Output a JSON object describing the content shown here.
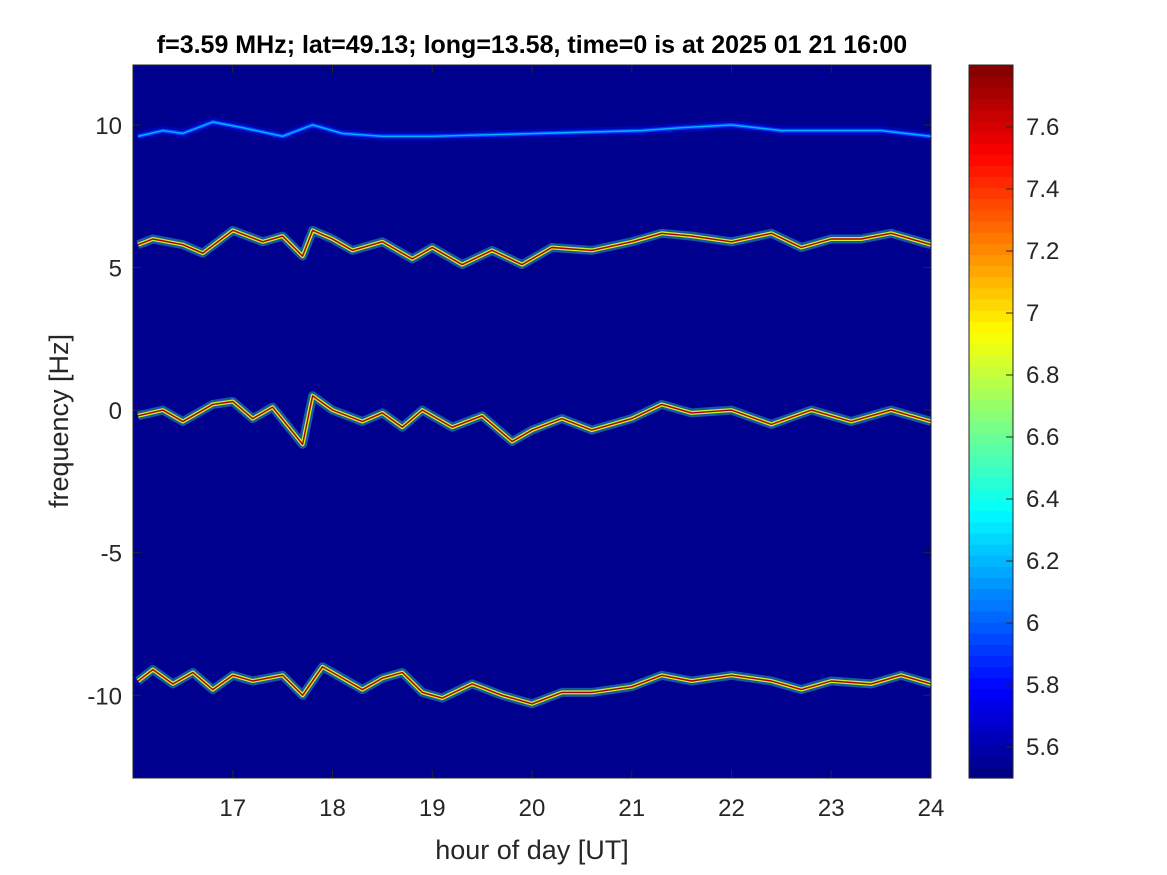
{
  "chart_data": {
    "type": "heatmap",
    "title": "f=3.59 MHz;  lat=49.13; long=13.58, time=0 is at 2025 01 21 16:00",
    "xlabel": "hour of day [UT]",
    "ylabel": "frequency [Hz]",
    "xlim": [
      16,
      24
    ],
    "ylim": [
      -12.9,
      12.1
    ],
    "x_ticks": [
      17,
      18,
      19,
      20,
      21,
      22,
      23,
      24
    ],
    "x_tick_labels": [
      "17",
      "18",
      "19",
      "20",
      "21",
      "22",
      "23",
      "24"
    ],
    "y_ticks": [
      10,
      5,
      0,
      -5,
      -10
    ],
    "y_tick_labels": [
      "10",
      "5",
      "0",
      "-5",
      "-10"
    ],
    "colormap": "jet",
    "background_color": "#00008f",
    "colorbar": {
      "range": [
        5.5,
        7.8
      ],
      "ticks": [
        7.6,
        7.4,
        7.2,
        7,
        6.8,
        6.6,
        6.4,
        6.2,
        6,
        5.8,
        5.6
      ],
      "tick_labels": [
        "7.6",
        "7.4",
        "7.2",
        "7",
        "6.8",
        "6.6",
        "6.4",
        "6.2",
        "6",
        "5.8",
        "5.6"
      ],
      "placement": "right"
    },
    "traces": [
      {
        "baseline_hz": 9.8,
        "points": [
          [
            16.05,
            9.6
          ],
          [
            16.3,
            9.8
          ],
          [
            16.5,
            9.7
          ],
          [
            16.8,
            10.1
          ],
          [
            17.1,
            9.9
          ],
          [
            17.5,
            9.6
          ],
          [
            17.8,
            10.0
          ],
          [
            18.1,
            9.7
          ],
          [
            18.5,
            9.6
          ],
          [
            19.0,
            9.6
          ],
          [
            21.1,
            9.8
          ],
          [
            21.5,
            9.9
          ],
          [
            22.0,
            10.0
          ],
          [
            22.5,
            9.8
          ],
          [
            23.0,
            9.8
          ],
          [
            23.5,
            9.8
          ],
          [
            24.0,
            9.6
          ]
        ],
        "peak_value": 6.2
      },
      {
        "baseline_hz": 5.9,
        "points": [
          [
            16.05,
            5.8
          ],
          [
            16.2,
            6.0
          ],
          [
            16.5,
            5.8
          ],
          [
            16.7,
            5.5
          ],
          [
            17.0,
            6.3
          ],
          [
            17.3,
            5.9
          ],
          [
            17.5,
            6.1
          ],
          [
            17.7,
            5.4
          ],
          [
            17.8,
            6.3
          ],
          [
            18.0,
            6.0
          ],
          [
            18.2,
            5.6
          ],
          [
            18.5,
            5.9
          ],
          [
            18.8,
            5.3
          ],
          [
            19.0,
            5.7
          ],
          [
            19.3,
            5.1
          ],
          [
            19.6,
            5.6
          ],
          [
            19.9,
            5.1
          ],
          [
            20.2,
            5.7
          ],
          [
            20.6,
            5.6
          ],
          [
            21.0,
            5.9
          ],
          [
            21.3,
            6.2
          ],
          [
            21.6,
            6.1
          ],
          [
            22.0,
            5.9
          ],
          [
            22.4,
            6.2
          ],
          [
            22.7,
            5.7
          ],
          [
            23.0,
            6.0
          ],
          [
            23.3,
            6.0
          ],
          [
            23.6,
            6.2
          ],
          [
            24.0,
            5.8
          ]
        ],
        "peak_value": 7.7
      },
      {
        "baseline_hz": 0.0,
        "points": [
          [
            16.05,
            -0.2
          ],
          [
            16.3,
            0.0
          ],
          [
            16.5,
            -0.4
          ],
          [
            16.8,
            0.2
          ],
          [
            17.0,
            0.3
          ],
          [
            17.2,
            -0.3
          ],
          [
            17.4,
            0.1
          ],
          [
            17.7,
            -1.2
          ],
          [
            17.8,
            0.5
          ],
          [
            18.0,
            0.0
          ],
          [
            18.3,
            -0.4
          ],
          [
            18.5,
            -0.1
          ],
          [
            18.7,
            -0.6
          ],
          [
            18.9,
            0.0
          ],
          [
            19.2,
            -0.6
          ],
          [
            19.5,
            -0.2
          ],
          [
            19.8,
            -1.1
          ],
          [
            20.0,
            -0.7
          ],
          [
            20.3,
            -0.3
          ],
          [
            20.6,
            -0.7
          ],
          [
            21.0,
            -0.3
          ],
          [
            21.3,
            0.2
          ],
          [
            21.6,
            -0.1
          ],
          [
            22.0,
            0.0
          ],
          [
            22.4,
            -0.5
          ],
          [
            22.8,
            0.0
          ],
          [
            23.2,
            -0.4
          ],
          [
            23.6,
            0.0
          ],
          [
            24.0,
            -0.4
          ]
        ],
        "peak_value": 7.7
      },
      {
        "baseline_hz": -9.5,
        "points": [
          [
            16.05,
            -9.5
          ],
          [
            16.2,
            -9.1
          ],
          [
            16.4,
            -9.6
          ],
          [
            16.6,
            -9.2
          ],
          [
            16.8,
            -9.8
          ],
          [
            17.0,
            -9.3
          ],
          [
            17.2,
            -9.5
          ],
          [
            17.5,
            -9.3
          ],
          [
            17.7,
            -10.0
          ],
          [
            17.9,
            -9.0
          ],
          [
            18.1,
            -9.4
          ],
          [
            18.3,
            -9.8
          ],
          [
            18.5,
            -9.4
          ],
          [
            18.7,
            -9.2
          ],
          [
            18.9,
            -9.9
          ],
          [
            19.1,
            -10.1
          ],
          [
            19.4,
            -9.6
          ],
          [
            19.7,
            -10.0
          ],
          [
            20.0,
            -10.3
          ],
          [
            20.3,
            -9.9
          ],
          [
            20.6,
            -9.9
          ],
          [
            21.0,
            -9.7
          ],
          [
            21.3,
            -9.3
          ],
          [
            21.6,
            -9.5
          ],
          [
            22.0,
            -9.3
          ],
          [
            22.4,
            -9.5
          ],
          [
            22.7,
            -9.8
          ],
          [
            23.0,
            -9.5
          ],
          [
            23.4,
            -9.6
          ],
          [
            23.7,
            -9.3
          ],
          [
            24.0,
            -9.6
          ]
        ],
        "peak_value": 7.7
      }
    ]
  }
}
